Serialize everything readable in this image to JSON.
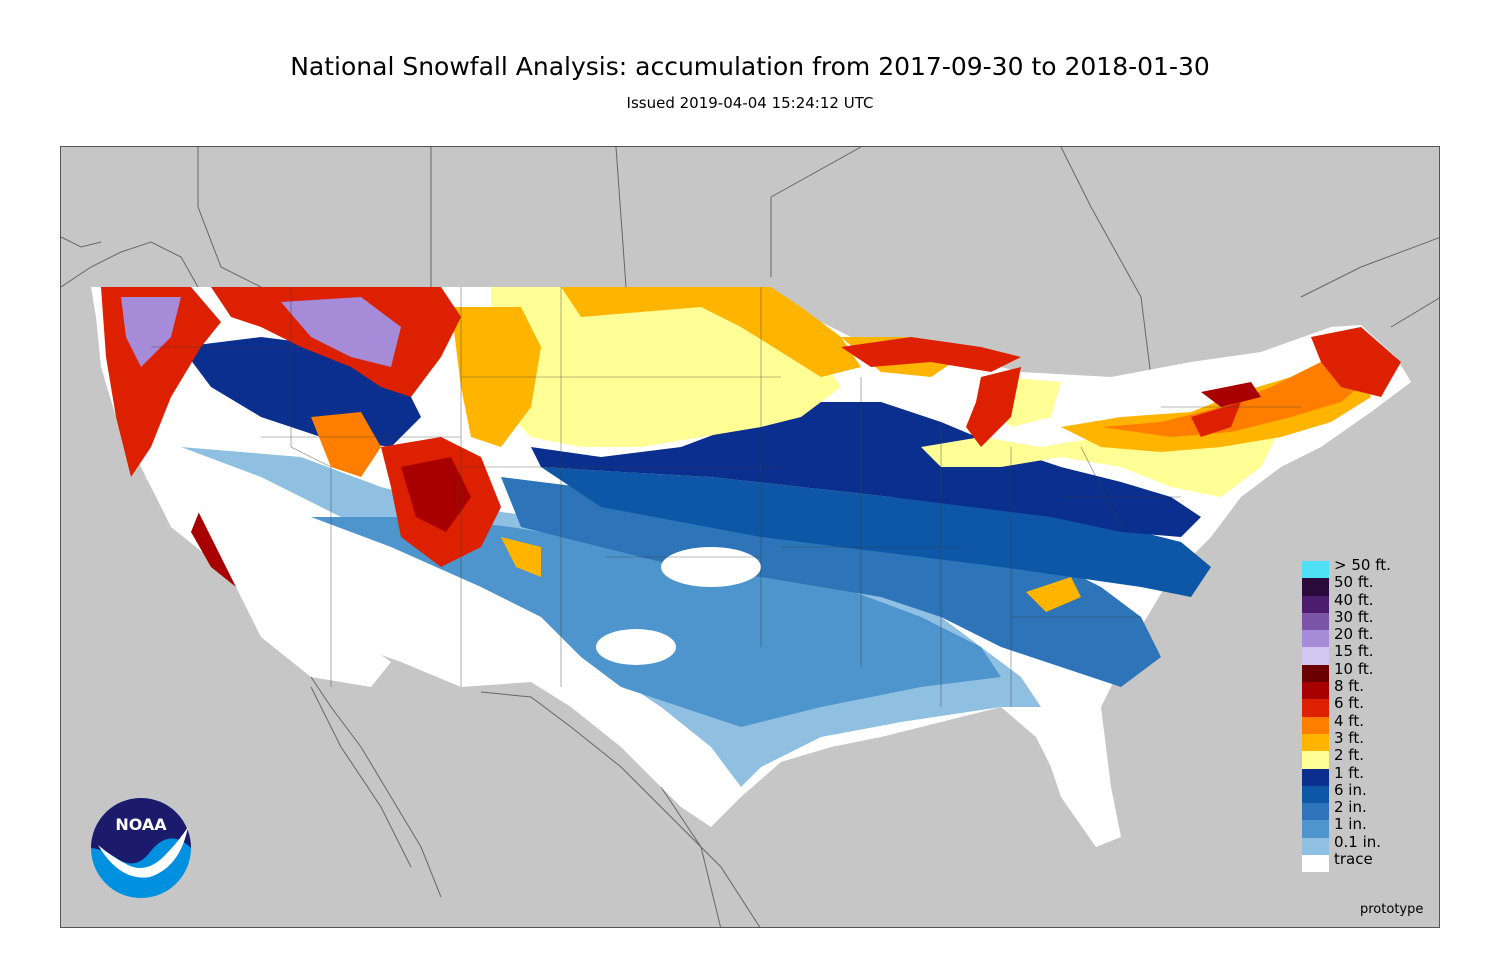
{
  "header": {
    "title": "National Snowfall Analysis: accumulation from 2017-09-30 to 2018-01-30",
    "subtitle": "Issued 2019-04-04 15:24:12 UTC"
  },
  "map": {
    "background_color": "#c6c6c6",
    "region": "Contiguous United States",
    "footnote": "prototype"
  },
  "logo": {
    "text": "NOAA",
    "colors": {
      "dark": "#1b1a6b",
      "light": "#0090e0",
      "white": "#ffffff"
    }
  },
  "legend": {
    "items": [
      {
        "label": "> 50 ft.",
        "color": "#4ee1f6"
      },
      {
        "label": "50 ft.",
        "color": "#2a0a3a"
      },
      {
        "label": "40 ft.",
        "color": "#4c1d6e"
      },
      {
        "label": "30 ft.",
        "color": "#7d55a8"
      },
      {
        "label": "20 ft.",
        "color": "#a58bd8"
      },
      {
        "label": "15 ft.",
        "color": "#d2c8f2"
      },
      {
        "label": "10 ft.",
        "color": "#6b0000"
      },
      {
        "label": "8 ft.",
        "color": "#a80000"
      },
      {
        "label": "6 ft.",
        "color": "#dd2000"
      },
      {
        "label": "4 ft.",
        "color": "#ff7e00"
      },
      {
        "label": "3 ft.",
        "color": "#ffb400"
      },
      {
        "label": "2 ft.",
        "color": "#ffff96"
      },
      {
        "label": "1 ft.",
        "color": "#0a2f8f"
      },
      {
        "label": "6 in.",
        "color": "#0d57a6"
      },
      {
        "label": "2 in.",
        "color": "#2d74b8"
      },
      {
        "label": "1 in.",
        "color": "#4f95cd"
      },
      {
        "label": "0.1 in.",
        "color": "#8fc0e2"
      },
      {
        "label": "trace",
        "color": "#ffffff"
      }
    ]
  }
}
